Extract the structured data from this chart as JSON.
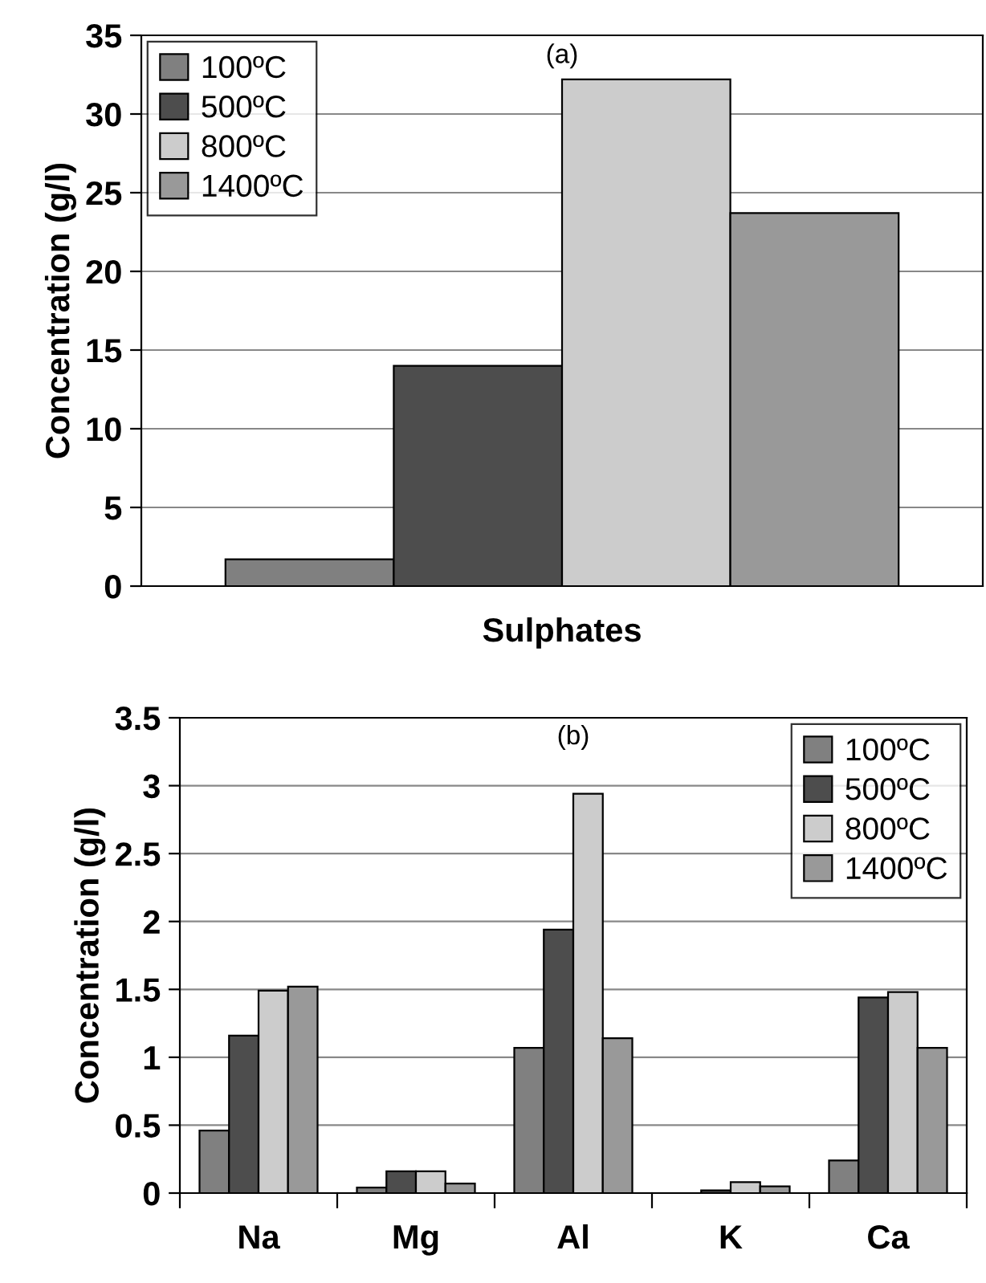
{
  "chart_data": [
    {
      "type": "bar",
      "categories": [
        "Sulphates"
      ],
      "ylabel": "Concentration (g/l)",
      "annotations": [
        "(a)"
      ],
      "series": [
        {
          "name": "100ºC",
          "color": "#808080",
          "values": [
            1.7
          ]
        },
        {
          "name": "500ºC",
          "color": "#4d4d4d",
          "values": [
            14.0
          ]
        },
        {
          "name": "800ºC",
          "color": "#cccccc",
          "values": [
            32.2
          ]
        },
        {
          "name": "1400ºC",
          "color": "#999999",
          "values": [
            23.7
          ]
        }
      ],
      "ylim": [
        0,
        35
      ],
      "yticks": [
        0,
        5,
        10,
        15,
        20,
        25,
        30,
        35
      ],
      "grid": "y",
      "legend": "top left"
    },
    {
      "type": "bar",
      "categories": [
        "Na",
        "Mg",
        "Al",
        "K",
        "Ca"
      ],
      "ylabel": "Concentration (g/l)",
      "annotations": [
        "(b)"
      ],
      "series": [
        {
          "name": "100ºC",
          "color": "#808080",
          "values": [
            0.46,
            0.04,
            1.07,
            null,
            0.24
          ]
        },
        {
          "name": "500ºC",
          "color": "#4d4d4d",
          "values": [
            1.16,
            0.16,
            1.94,
            0.02,
            1.44
          ]
        },
        {
          "name": "800ºC",
          "color": "#cccccc",
          "values": [
            1.49,
            0.16,
            2.94,
            0.08,
            1.48
          ]
        },
        {
          "name": "1400ºC",
          "color": "#999999",
          "values": [
            1.52,
            0.07,
            1.14,
            0.05,
            1.07
          ]
        }
      ],
      "ylim": [
        0,
        3.5
      ],
      "yticks": [
        0,
        0.5,
        1,
        1.5,
        2,
        2.5,
        3,
        3.5
      ],
      "grid": "y",
      "legend": "top right"
    }
  ]
}
